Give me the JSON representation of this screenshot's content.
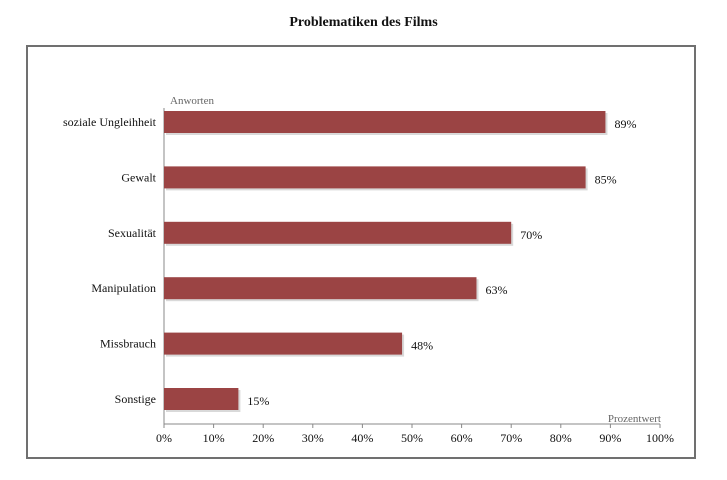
{
  "chart_data": {
    "type": "bar",
    "orientation": "horizontal",
    "title": "Problematiken des Films",
    "ylabel": "Anworten",
    "xlabel": "Prozentwert",
    "categories": [
      "soziale Ungleihheit",
      "Gewalt",
      "Sexualität",
      "Manipulation",
      "Missbrauch",
      "Sonstige"
    ],
    "values": [
      89,
      85,
      70,
      63,
      48,
      15
    ],
    "value_labels": [
      "89%",
      "85%",
      "70%",
      "63%",
      "48%",
      "15%"
    ],
    "xlim": [
      0,
      100
    ],
    "x_ticks": [
      "0%",
      "10%",
      "20%",
      "30%",
      "40%",
      "50%",
      "60%",
      "70%",
      "80%",
      "90%",
      "100%"
    ],
    "bar_color": "#9b4444",
    "grid": false,
    "legend": "none"
  }
}
